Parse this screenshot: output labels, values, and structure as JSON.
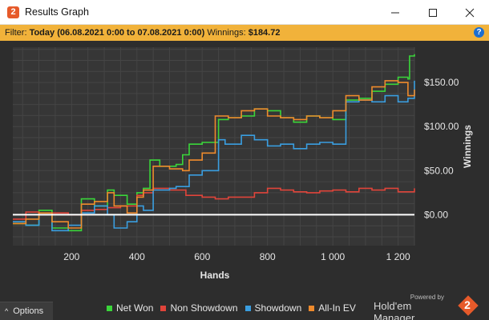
{
  "window": {
    "title": "Results Graph",
    "app_icon_glyph": "2",
    "controls": {
      "minimize": "minimize-icon",
      "maximize": "maximize-icon",
      "close": "close-icon"
    }
  },
  "filter": {
    "label": "Filter:",
    "range": "Today (06.08.2021 0:00 to 07.08.2021 0:00)",
    "winnings_label": "Winnings:",
    "winnings_value": "$184.72",
    "help_glyph": "?"
  },
  "chart_data": {
    "type": "line",
    "xlabel": "Hands",
    "ylabel": "Winnings",
    "xlim": [
      20,
      1250
    ],
    "ylim": [
      -35,
      190
    ],
    "x_ticks": [
      {
        "value": 200,
        "label": "200"
      },
      {
        "value": 400,
        "label": "400"
      },
      {
        "value": 600,
        "label": "600"
      },
      {
        "value": 800,
        "label": "800"
      },
      {
        "value": 1000,
        "label": "1 000"
      },
      {
        "value": 1200,
        "label": "1 200"
      }
    ],
    "y_ticks": [
      {
        "value": 0,
        "label": "$0.00"
      },
      {
        "value": 50,
        "label": "$50.00"
      },
      {
        "value": 100,
        "label": "$100.00"
      },
      {
        "value": 150,
        "label": "$150.00"
      }
    ],
    "grid": true,
    "legend_position": "bottom",
    "series": [
      {
        "name": "Net Won",
        "color": "#3ad63a",
        "x": [
          20,
          60,
          100,
          140,
          190,
          230,
          270,
          310,
          330,
          370,
          400,
          420,
          440,
          470,
          520,
          540,
          560,
          600,
          650,
          680,
          720,
          760,
          800,
          840,
          880,
          920,
          960,
          1000,
          1040,
          1080,
          1120,
          1160,
          1200,
          1230,
          1235,
          1250
        ],
        "y": [
          -10,
          -12,
          5,
          -15,
          -18,
          18,
          10,
          28,
          22,
          12,
          25,
          30,
          62,
          55,
          57,
          68,
          80,
          82,
          108,
          110,
          112,
          120,
          118,
          110,
          105,
          112,
          110,
          108,
          130,
          132,
          140,
          148,
          156,
          154,
          180,
          182
        ]
      },
      {
        "name": "Non Showdown",
        "color": "#e0443a",
        "x": [
          20,
          60,
          100,
          140,
          190,
          230,
          270,
          310,
          350,
          400,
          420,
          450,
          500,
          550,
          600,
          640,
          680,
          720,
          760,
          800,
          840,
          880,
          920,
          960,
          1000,
          1040,
          1080,
          1120,
          1160,
          1200,
          1250
        ],
        "y": [
          -5,
          3,
          0,
          2,
          0,
          5,
          6,
          8,
          10,
          22,
          25,
          30,
          28,
          22,
          20,
          18,
          20,
          20,
          25,
          30,
          28,
          26,
          25,
          27,
          28,
          26,
          30,
          28,
          30,
          26,
          30
        ]
      },
      {
        "name": "Showdown",
        "color": "#3a9ee0",
        "x": [
          20,
          60,
          100,
          140,
          190,
          230,
          270,
          310,
          330,
          370,
          400,
          420,
          450,
          500,
          520,
          560,
          600,
          650,
          670,
          720,
          760,
          800,
          840,
          880,
          920,
          960,
          1000,
          1040,
          1080,
          1120,
          1160,
          1200,
          1230,
          1250
        ],
        "y": [
          -8,
          -12,
          0,
          -18,
          -12,
          2,
          10,
          0,
          -15,
          -8,
          10,
          5,
          28,
          30,
          32,
          45,
          50,
          85,
          80,
          90,
          85,
          78,
          80,
          75,
          80,
          82,
          80,
          128,
          130,
          128,
          135,
          128,
          132,
          152
        ]
      },
      {
        "name": "All-In EV",
        "color": "#ee8a2c",
        "x": [
          20,
          60,
          100,
          140,
          190,
          230,
          270,
          310,
          330,
          370,
          400,
          420,
          450,
          500,
          540,
          560,
          600,
          640,
          680,
          720,
          760,
          800,
          840,
          880,
          920,
          960,
          1000,
          1040,
          1080,
          1120,
          1160,
          1200,
          1230,
          1250
        ],
        "y": [
          -10,
          -5,
          2,
          -8,
          -15,
          12,
          15,
          25,
          10,
          2,
          20,
          28,
          55,
          52,
          50,
          62,
          70,
          112,
          110,
          118,
          120,
          112,
          110,
          108,
          112,
          110,
          118,
          135,
          130,
          145,
          152,
          150,
          135,
          142
        ]
      }
    ]
  },
  "footer": {
    "options_label": "Options",
    "options_caret": "^",
    "brand_powered": "Powered by",
    "brand_name": "Hold'em Manager",
    "brand_logo_glyph": "2"
  }
}
